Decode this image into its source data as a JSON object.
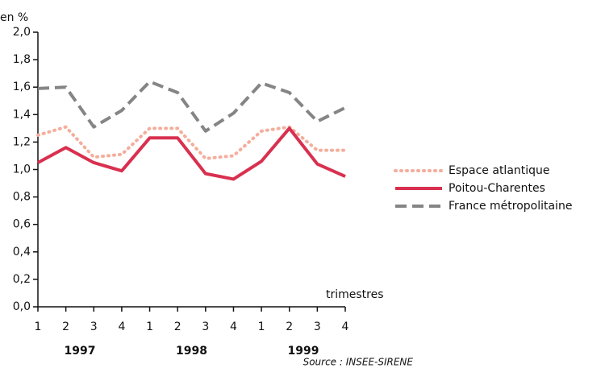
{
  "chart_data": {
    "type": "line",
    "y_label": "en %",
    "x_label": "trimestres",
    "source": "Source : INSEE-SIRENE",
    "categories": [
      "1",
      "2",
      "3",
      "4",
      "1",
      "2",
      "3",
      "4",
      "1",
      "2",
      "3",
      "4"
    ],
    "years": [
      "1997",
      "1998",
      "1999"
    ],
    "ylim": [
      0,
      2.0
    ],
    "yticks": [
      {
        "value": 0,
        "label": "0,0"
      },
      {
        "value": 0.2,
        "label": "0,2"
      },
      {
        "value": 0.4,
        "label": "0,4"
      },
      {
        "value": 0.6,
        "label": "0,6"
      },
      {
        "value": 0.8,
        "label": "0,8"
      },
      {
        "value": 1.0,
        "label": "1,0"
      },
      {
        "value": 1.2,
        "label": "1,2"
      },
      {
        "value": 1.4,
        "label": "1,4"
      },
      {
        "value": 1.6,
        "label": "1,6"
      },
      {
        "value": 1.8,
        "label": "1,8"
      },
      {
        "value": 2.0,
        "label": "2,0"
      }
    ],
    "series": [
      {
        "name": "Espace atlantique",
        "color": "#f4ae9c",
        "style": "dotted",
        "values": [
          1.25,
          1.31,
          1.09,
          1.11,
          1.3,
          1.3,
          1.08,
          1.1,
          1.28,
          1.31,
          1.14,
          1.14
        ]
      },
      {
        "name": "Poitou-Charentes",
        "color": "#d9304f",
        "style": "solid",
        "values": [
          1.05,
          1.16,
          1.05,
          0.99,
          1.23,
          1.23,
          0.97,
          0.93,
          1.06,
          1.3,
          1.04,
          0.95
        ]
      },
      {
        "name": "France métropolitaine",
        "color": "#858585",
        "style": "dashed",
        "values": [
          1.59,
          1.6,
          1.31,
          1.43,
          1.64,
          1.56,
          1.28,
          1.41,
          1.63,
          1.56,
          1.35,
          1.45
        ]
      }
    ]
  }
}
